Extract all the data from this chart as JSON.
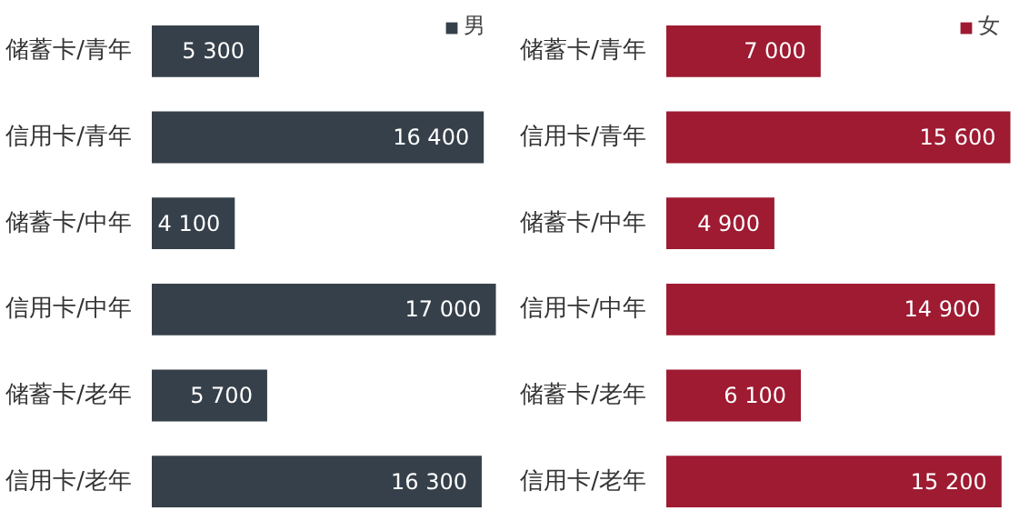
{
  "chart_data": [
    {
      "type": "bar",
      "orientation": "horizontal",
      "categories": [
        "储蓄卡/青年",
        "信用卡/青年",
        "储蓄卡/中年",
        "信用卡/中年",
        "储蓄卡/老年",
        "信用卡/老年"
      ],
      "tick_labels": "y",
      "grid": false,
      "legend": "top right",
      "series": [
        {
          "name": "男",
          "color": "#36404a",
          "values": [
            5300,
            16400,
            4100,
            17000,
            5700,
            16300
          ],
          "value_labels": [
            "5 300",
            "16 400",
            "4 100",
            "17 000",
            "5 700",
            "16 300"
          ]
        }
      ]
    },
    {
      "type": "bar",
      "orientation": "horizontal",
      "categories": [
        "储蓄卡/青年",
        "信用卡/青年",
        "储蓄卡/中年",
        "信用卡/中年",
        "储蓄卡/老年",
        "信用卡/老年"
      ],
      "tick_labels": "y",
      "grid": false,
      "legend": "top right",
      "series": [
        {
          "name": "女",
          "color": "#9e1b32",
          "values": [
            7000,
            15600,
            4900,
            14900,
            6100,
            15200
          ],
          "value_labels": [
            "7 000",
            "15 600",
            "4 900",
            "14 900",
            "6 100",
            "15 200"
          ]
        }
      ]
    }
  ]
}
